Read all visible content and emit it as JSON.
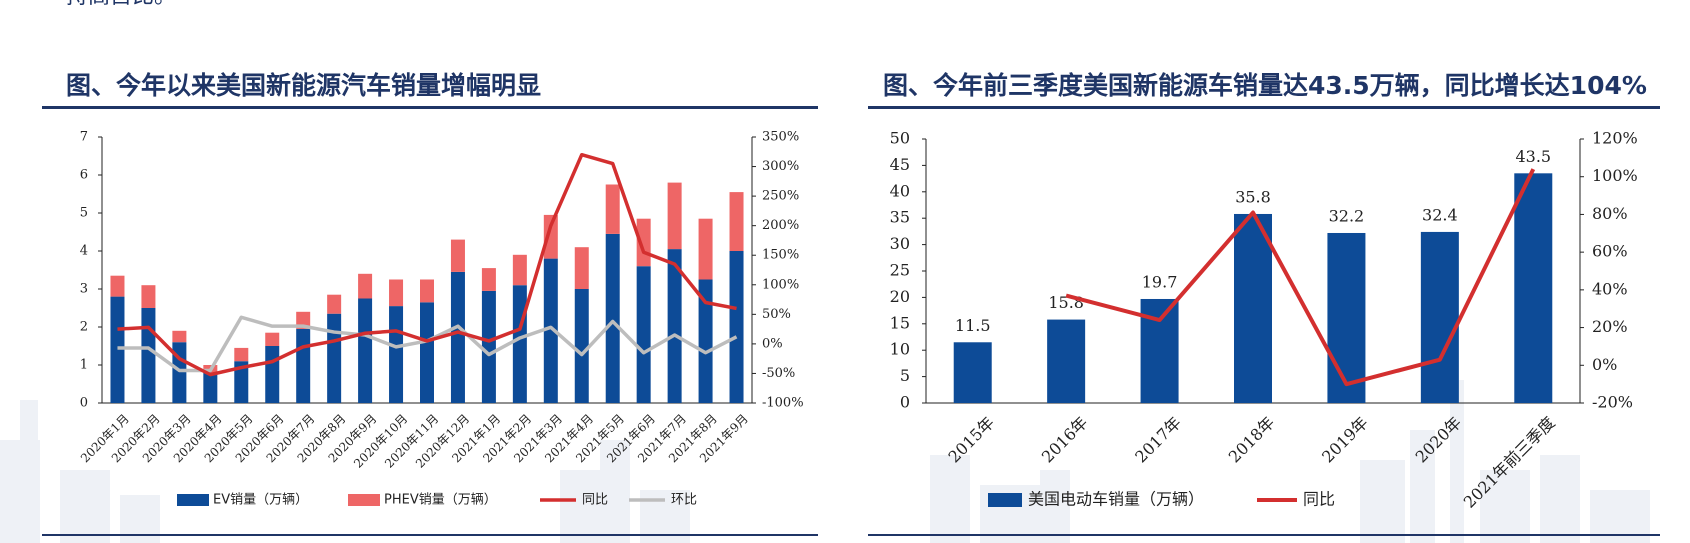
{
  "top_text": "持高占比。",
  "colors": {
    "navy": "#1f3566",
    "bar_blue": "#0d4b97",
    "bar_pink": "#ee6666",
    "line_red": "#d32f2f",
    "line_gray": "#bdbdbd",
    "skyline": "#eef1f6"
  },
  "chart_data": [
    {
      "type": "bar",
      "title": "图、今年以来美国新能源汽车销量增幅明显",
      "stacked": true,
      "categories": [
        "2020年1月",
        "2020年2月",
        "2020年3月",
        "2020年4月",
        "2020年5月",
        "2020年6月",
        "2020年7月",
        "2020年8月",
        "2020年9月",
        "2020年10月",
        "2020年11月",
        "2020年12月",
        "2021年1月",
        "2021年2月",
        "2021年3月",
        "2021年4月",
        "2021年5月",
        "2021年6月",
        "2021年7月",
        "2021年8月",
        "2021年9月"
      ],
      "series": [
        {
          "name": "EV销量（万辆）",
          "kind": "bar",
          "axis": "left",
          "values": [
            2.8,
            2.5,
            1.6,
            0.8,
            1.1,
            1.5,
            1.95,
            2.35,
            2.75,
            2.55,
            2.65,
            3.45,
            2.95,
            3.1,
            3.8,
            3.0,
            4.45,
            3.6,
            4.05,
            3.25,
            4.0
          ]
        },
        {
          "name": "PHEV销量（万辆）",
          "kind": "bar",
          "axis": "left",
          "values": [
            0.55,
            0.6,
            0.3,
            0.2,
            0.35,
            0.35,
            0.45,
            0.5,
            0.65,
            0.7,
            0.6,
            0.85,
            0.6,
            0.8,
            1.15,
            1.1,
            1.3,
            1.25,
            1.75,
            1.6,
            1.55
          ]
        },
        {
          "name": "同比",
          "kind": "line",
          "axis": "right",
          "values": [
            25,
            28,
            -25,
            -52,
            -40,
            -30,
            -5,
            5,
            18,
            22,
            5,
            20,
            5,
            25,
            200,
            320,
            305,
            155,
            135,
            70,
            60
          ]
        },
        {
          "name": "环比",
          "kind": "line",
          "axis": "right",
          "values": [
            -7,
            -7,
            -45,
            -45,
            45,
            30,
            30,
            20,
            15,
            -5,
            5,
            30,
            -18,
            10,
            28,
            -18,
            38,
            -15,
            15,
            -15,
            12
          ]
        }
      ],
      "left_axis": {
        "min": 0,
        "max": 7,
        "ticks": [
          "0",
          "1",
          "2",
          "3",
          "4",
          "5",
          "6",
          "7"
        ]
      },
      "right_axis": {
        "min": -100,
        "max": 350,
        "ticks": [
          "-100%",
          "-50%",
          "0%",
          "50%",
          "100%",
          "150%",
          "200%",
          "250%",
          "300%",
          "350%"
        ]
      },
      "legend": [
        "EV销量（万辆）",
        "PHEV销量（万辆）",
        "同比",
        "环比"
      ],
      "legend_position": "bottom"
    },
    {
      "type": "bar",
      "title": "图、今年前三季度美国新能源车销量达43.5万辆，同比增长达104%",
      "categories": [
        "2015年",
        "2016年",
        "2017年",
        "2018年",
        "2019年",
        "2020年",
        "2021年前三季度"
      ],
      "series": [
        {
          "name": "美国电动车销量（万辆）",
          "kind": "bar",
          "axis": "left",
          "values": [
            11.5,
            15.8,
            19.7,
            35.8,
            32.2,
            32.4,
            43.5
          ],
          "labels": [
            "11.5",
            "15.8",
            "19.7",
            "35.8",
            "32.2",
            "32.4",
            "43.5"
          ]
        },
        {
          "name": "同比",
          "kind": "line",
          "axis": "right",
          "values": [
            null,
            37,
            24,
            81,
            -10,
            3,
            104
          ]
        }
      ],
      "left_axis": {
        "min": 0,
        "max": 50,
        "ticks": [
          "0",
          "5",
          "10",
          "15",
          "20",
          "25",
          "30",
          "35",
          "40",
          "45",
          "50"
        ]
      },
      "right_axis": {
        "min": -20,
        "max": 120,
        "ticks": [
          "-20%",
          "0%",
          "20%",
          "40%",
          "60%",
          "80%",
          "100%",
          "120%"
        ]
      },
      "legend": [
        "美国电动车销量（万辆）",
        "同比"
      ],
      "legend_position": "bottom"
    }
  ]
}
